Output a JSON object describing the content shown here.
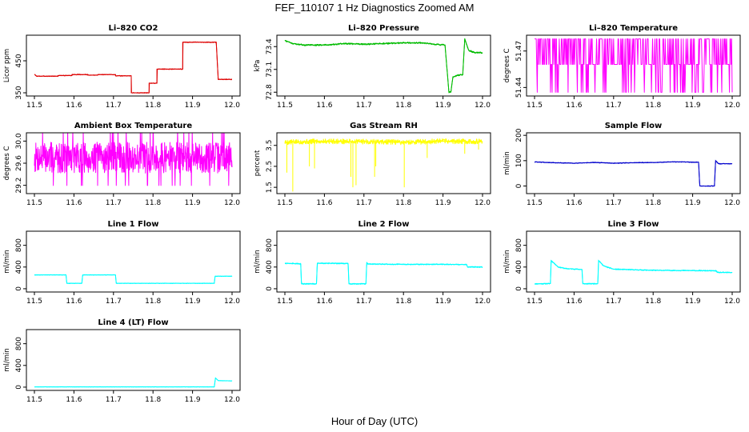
{
  "figure": {
    "title": "FEF_110107  1 Hz Diagnostics Zoomed AM",
    "xlabel": "Hour of Day (UTC)"
  },
  "chart_data": [
    {
      "type": "line",
      "title": "Li–820 CO2",
      "ylabel": "Licor ppm",
      "color": "#dd0000",
      "xlim": [
        11.5,
        12.0
      ],
      "ylim": [
        340,
        530
      ],
      "xticks": [
        "11.5",
        "11.6",
        "11.7",
        "11.8",
        "11.9",
        "12.0"
      ],
      "yticks": [
        {
          "v": 350,
          "label": "350"
        },
        {
          "v": 450,
          "label": "450"
        }
      ],
      "noise": 1.2,
      "spikes": [],
      "points": [
        [
          11.5,
          408
        ],
        [
          11.505,
          402
        ],
        [
          11.56,
          402
        ],
        [
          11.56,
          404
        ],
        [
          11.595,
          404
        ],
        [
          11.595,
          407
        ],
        [
          11.635,
          407
        ],
        [
          11.635,
          405
        ],
        [
          11.66,
          405
        ],
        [
          11.66,
          407
        ],
        [
          11.7,
          407
        ],
        [
          11.705,
          407
        ],
        [
          11.705,
          403
        ],
        [
          11.745,
          403
        ],
        [
          11.745,
          350
        ],
        [
          11.79,
          350
        ],
        [
          11.79,
          380
        ],
        [
          11.81,
          380
        ],
        [
          11.81,
          424
        ],
        [
          11.875,
          424
        ],
        [
          11.875,
          508
        ],
        [
          11.96,
          508
        ],
        [
          11.965,
          392
        ],
        [
          12.0,
          392
        ]
      ]
    },
    {
      "type": "line",
      "title": "Li–820 Pressure",
      "ylabel": "kPa",
      "color": "#00bb00",
      "xlim": [
        11.5,
        12.0
      ],
      "ylim": [
        72.75,
        73.55
      ],
      "xticks": [
        "11.5",
        "11.6",
        "11.7",
        "11.8",
        "11.9",
        "12.0"
      ],
      "yticks": [
        {
          "v": 72.8,
          "label": "72.8"
        },
        {
          "v": 73.1,
          "label": "73.1"
        },
        {
          "v": 73.4,
          "label": "73.4"
        }
      ],
      "noise": 0.01,
      "spikes": [],
      "points": [
        [
          11.5,
          73.48
        ],
        [
          11.52,
          73.44
        ],
        [
          11.55,
          73.42
        ],
        [
          11.6,
          73.42
        ],
        [
          11.65,
          73.44
        ],
        [
          11.7,
          73.43
        ],
        [
          11.75,
          73.44
        ],
        [
          11.8,
          73.45
        ],
        [
          11.85,
          73.45
        ],
        [
          11.88,
          73.43
        ],
        [
          11.905,
          73.42
        ],
        [
          11.915,
          72.8
        ],
        [
          11.92,
          72.8
        ],
        [
          11.925,
          73.0
        ],
        [
          11.935,
          73.02
        ],
        [
          11.945,
          73.03
        ],
        [
          11.95,
          73.03
        ],
        [
          11.955,
          73.5
        ],
        [
          11.965,
          73.35
        ],
        [
          11.98,
          73.32
        ],
        [
          12.0,
          73.32
        ]
      ]
    },
    {
      "type": "line",
      "title": "Li–820 Temperature",
      "ylabel": "degrees C",
      "color": "#ff00ff",
      "xlim": [
        11.5,
        12.0
      ],
      "ylim": [
        51.433,
        51.483
      ],
      "xticks": [
        "11.5",
        "11.6",
        "11.7",
        "11.8",
        "11.9",
        "12.0"
      ],
      "yticks": [
        {
          "v": 51.44,
          "label": "51.44"
        },
        {
          "v": 51.47,
          "label": "51.47"
        }
      ],
      "mode": "toggle",
      "levels": [
        51.436,
        51.459,
        51.48
      ],
      "seed": 11
    },
    {
      "type": "line",
      "title": "Ambient Box Temperature",
      "ylabel": "degrees C",
      "color": "#ff00ff",
      "xlim": [
        11.5,
        12.0
      ],
      "ylim": [
        29.05,
        30.15
      ],
      "xticks": [
        "11.5",
        "11.6",
        "11.7",
        "11.8",
        "11.9",
        "12.0"
      ],
      "yticks": [
        {
          "v": 29.2,
          "label": "29.2"
        },
        {
          "v": 29.6,
          "label": "29.6"
        },
        {
          "v": 30.0,
          "label": "30.0"
        }
      ],
      "mode": "noisy",
      "base": 29.7,
      "amp": 0.28,
      "seed": 7
    },
    {
      "type": "line",
      "title": "Gas Stream RH",
      "ylabel": "percent",
      "color": "#ffff00",
      "xlim": [
        11.5,
        12.0
      ],
      "ylim": [
        1.2,
        4.1
      ],
      "xticks": [
        "11.5",
        "11.6",
        "11.7",
        "11.8",
        "11.9",
        "12.0"
      ],
      "yticks": [
        {
          "v": 1.5,
          "label": "1.5"
        },
        {
          "v": 2.5,
          "label": "2.5"
        },
        {
          "v": 3.5,
          "label": "3.5"
        }
      ],
      "noise": 0.12,
      "seed": 5,
      "points": [
        [
          11.5,
          3.65
        ],
        [
          11.6,
          3.7
        ],
        [
          11.7,
          3.68
        ],
        [
          11.8,
          3.65
        ],
        [
          11.9,
          3.7
        ],
        [
          12.0,
          3.68
        ]
      ],
      "spikes": [
        [
          11.52,
          1.3
        ],
        [
          11.505,
          2.2
        ],
        [
          11.562,
          2.5
        ],
        [
          11.575,
          2.4
        ],
        [
          11.667,
          2.0
        ],
        [
          11.672,
          1.5
        ],
        [
          11.68,
          1.6
        ],
        [
          11.727,
          2.0
        ],
        [
          11.73,
          2.5
        ],
        [
          11.802,
          1.5
        ],
        [
          11.86,
          2.9
        ],
        [
          11.955,
          3.1
        ],
        [
          11.99,
          3.3
        ]
      ]
    },
    {
      "type": "line",
      "title": "Sample Flow",
      "ylabel": "ml/min",
      "color": "#0000cc",
      "xlim": [
        11.5,
        12.0
      ],
      "ylim": [
        -30,
        210
      ],
      "xticks": [
        "11.5",
        "11.6",
        "11.7",
        "11.8",
        "11.9",
        "12.0"
      ],
      "yticks": [
        {
          "v": 0,
          "label": "0"
        },
        {
          "v": 100,
          "label": "100"
        },
        {
          "v": 200,
          "label": "200"
        }
      ],
      "noise": 1.5,
      "spikes": [],
      "points": [
        [
          11.5,
          95
        ],
        [
          11.55,
          92
        ],
        [
          11.6,
          90
        ],
        [
          11.65,
          93
        ],
        [
          11.7,
          90
        ],
        [
          11.75,
          92
        ],
        [
          11.8,
          93
        ],
        [
          11.85,
          95
        ],
        [
          11.87,
          95
        ],
        [
          11.9,
          94
        ],
        [
          11.915,
          94
        ],
        [
          11.918,
          0
        ],
        [
          11.955,
          0
        ],
        [
          11.958,
          100
        ],
        [
          11.965,
          88
        ],
        [
          12.0,
          88
        ]
      ]
    },
    {
      "type": "line",
      "title": "Line 1 Flow",
      "ylabel": "ml/min",
      "color": "#00ffff",
      "xlim": [
        11.5,
        12.0
      ],
      "ylim": [
        -60,
        1060
      ],
      "xticks": [
        "11.5",
        "11.6",
        "11.7",
        "11.8",
        "11.9",
        "12.0"
      ],
      "yticks": [
        {
          "v": 0,
          "label": "0"
        },
        {
          "v": 400,
          "label": "400"
        },
        {
          "v": 800,
          "label": "800"
        }
      ],
      "noise": 5,
      "spikes": [],
      "points": [
        [
          11.5,
          255
        ],
        [
          11.58,
          255
        ],
        [
          11.582,
          100
        ],
        [
          11.62,
          100
        ],
        [
          11.622,
          255
        ],
        [
          11.705,
          255
        ],
        [
          11.707,
          100
        ],
        [
          11.955,
          100
        ],
        [
          11.957,
          230
        ],
        [
          12.0,
          230
        ]
      ]
    },
    {
      "type": "line",
      "title": "Line 2 Flow",
      "ylabel": "ml/min",
      "color": "#00ffff",
      "xlim": [
        11.5,
        12.0
      ],
      "ylim": [
        -60,
        1060
      ],
      "xticks": [
        "11.5",
        "11.6",
        "11.7",
        "11.8",
        "11.9",
        "12.0"
      ],
      "yticks": [
        {
          "v": 0,
          "label": "0"
        },
        {
          "v": 400,
          "label": "400"
        },
        {
          "v": 800,
          "label": "800"
        }
      ],
      "noise": 10,
      "spikes": [],
      "points": [
        [
          11.5,
          470
        ],
        [
          11.54,
          460
        ],
        [
          11.542,
          90
        ],
        [
          11.58,
          90
        ],
        [
          11.582,
          470
        ],
        [
          11.66,
          465
        ],
        [
          11.662,
          90
        ],
        [
          11.705,
          90
        ],
        [
          11.707,
          480
        ],
        [
          11.71,
          455
        ],
        [
          11.8,
          450
        ],
        [
          11.9,
          450
        ],
        [
          11.96,
          445
        ],
        [
          11.962,
          400
        ],
        [
          12.0,
          400
        ]
      ]
    },
    {
      "type": "line",
      "title": "Line 3 Flow",
      "ylabel": "ml/min",
      "color": "#00ffff",
      "xlim": [
        11.5,
        12.0
      ],
      "ylim": [
        -60,
        1060
      ],
      "xticks": [
        "11.5",
        "11.6",
        "11.7",
        "11.8",
        "11.9",
        "12.0"
      ],
      "yticks": [
        {
          "v": 0,
          "label": "0"
        },
        {
          "v": 400,
          "label": "400"
        },
        {
          "v": 800,
          "label": "800"
        }
      ],
      "noise": 10,
      "spikes": [],
      "points": [
        [
          11.5,
          90
        ],
        [
          11.54,
          95
        ],
        [
          11.542,
          520
        ],
        [
          11.56,
          400
        ],
        [
          11.58,
          370
        ],
        [
          11.62,
          355
        ],
        [
          11.622,
          90
        ],
        [
          11.66,
          95
        ],
        [
          11.662,
          520
        ],
        [
          11.675,
          420
        ],
        [
          11.7,
          360
        ],
        [
          11.8,
          340
        ],
        [
          11.9,
          335
        ],
        [
          11.96,
          330
        ],
        [
          11.962,
          300
        ],
        [
          12.0,
          300
        ]
      ]
    },
    {
      "type": "line",
      "title": "Line 4 (LT) Flow",
      "ylabel": "ml/min",
      "color": "#00ffff",
      "xlim": [
        11.5,
        12.0
      ],
      "ylim": [
        -60,
        1060
      ],
      "xticks": [
        "11.5",
        "11.6",
        "11.7",
        "11.8",
        "11.9",
        "12.0"
      ],
      "yticks": [
        {
          "v": 0,
          "label": "0"
        },
        {
          "v": 400,
          "label": "400"
        },
        {
          "v": 800,
          "label": "800"
        }
      ],
      "noise": 3,
      "spikes": [],
      "points": [
        [
          11.5,
          5
        ],
        [
          11.955,
          5
        ],
        [
          11.958,
          170
        ],
        [
          11.965,
          120
        ],
        [
          12.0,
          115
        ]
      ]
    }
  ]
}
